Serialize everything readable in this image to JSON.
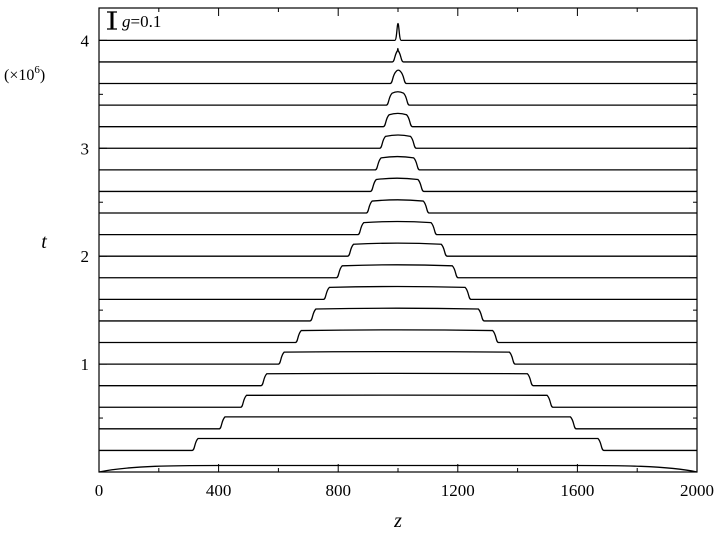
{
  "chart_data": {
    "type": "line",
    "title": "",
    "xlabel": "z",
    "ylabel": "t",
    "y_multiplier": "(×10",
    "y_multiplier_exp": "6",
    "y_multiplier_close": ")",
    "xlim": [
      0,
      2000
    ],
    "ylim": [
      0,
      4.3
    ],
    "x_ticks": [
      0,
      400,
      800,
      1200,
      1600,
      2000
    ],
    "x_tick_labels": [
      "0",
      "400",
      "800",
      "1200",
      "1600",
      "2000"
    ],
    "x_minor_ticks": [
      200,
      600,
      1000,
      1400,
      1800
    ],
    "y_ticks": [
      1,
      2,
      3,
      4
    ],
    "y_tick_labels": [
      "1",
      "2",
      "3",
      "4"
    ],
    "y_minor_ticks": [
      0.5,
      1.5,
      2.5,
      3.5
    ],
    "legend": {
      "symbol": "error-bar",
      "label_var": "g",
      "label_eq": "=0.1",
      "position": "top-left"
    },
    "grid": false,
    "profile_step_height": 0.12,
    "series": [
      {
        "t": 0.0,
        "z_left": 0,
        "z_right": 2000,
        "baseline": true
      },
      {
        "t": 0.2,
        "z_left": 318,
        "z_right": 1682
      },
      {
        "t": 0.4,
        "z_left": 408,
        "z_right": 1590
      },
      {
        "t": 0.6,
        "z_left": 480,
        "z_right": 1512
      },
      {
        "t": 0.8,
        "z_left": 548,
        "z_right": 1446
      },
      {
        "t": 1.0,
        "z_left": 606,
        "z_right": 1386
      },
      {
        "t": 1.2,
        "z_left": 663,
        "z_right": 1330
      },
      {
        "t": 1.4,
        "z_left": 712,
        "z_right": 1282
      },
      {
        "t": 1.6,
        "z_left": 757,
        "z_right": 1238
      },
      {
        "t": 1.8,
        "z_left": 800,
        "z_right": 1195
      },
      {
        "t": 2.0,
        "z_left": 838,
        "z_right": 1158
      },
      {
        "t": 2.2,
        "z_left": 872,
        "z_right": 1124
      },
      {
        "t": 2.4,
        "z_left": 900,
        "z_right": 1098
      },
      {
        "t": 2.6,
        "z_left": 914,
        "z_right": 1080
      },
      {
        "t": 2.8,
        "z_left": 930,
        "z_right": 1066
      },
      {
        "t": 3.0,
        "z_left": 945,
        "z_right": 1055
      },
      {
        "t": 3.2,
        "z_left": 957,
        "z_right": 1042
      },
      {
        "t": 3.4,
        "z_left": 967,
        "z_right": 1032
      },
      {
        "t": 3.6,
        "z_left": 980,
        "z_right": 1022
      },
      {
        "t": 3.8,
        "z_left": 987,
        "z_right": 1012
      },
      {
        "t": 4.0,
        "z_left": 996,
        "z_right": 1004,
        "spike": true
      }
    ]
  }
}
